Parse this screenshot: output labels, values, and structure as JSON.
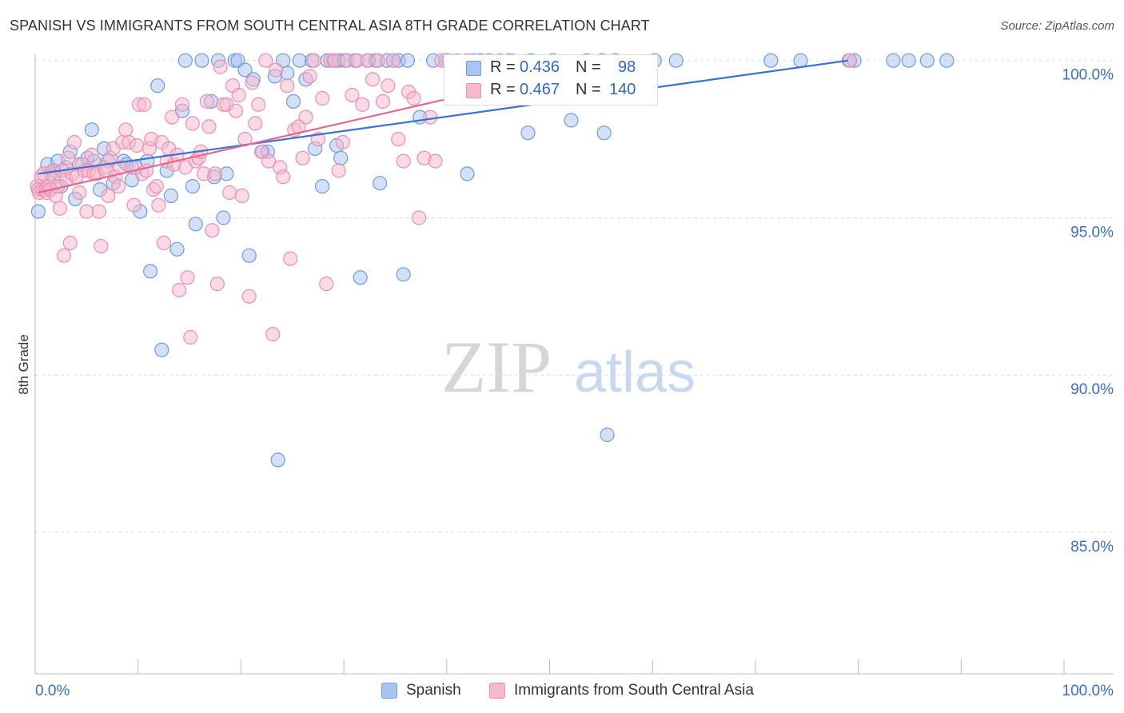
{
  "header": {
    "title": "SPANISH VS IMMIGRANTS FROM SOUTH CENTRAL ASIA 8TH GRADE CORRELATION CHART",
    "source": "Source: ZipAtlas.com"
  },
  "watermark": {
    "zip": "ZIP",
    "atlas": "atlas"
  },
  "legend": {
    "r_label": "R =",
    "n_label": "N =",
    "rows": [
      {
        "r": "0.436",
        "n": "98"
      },
      {
        "r": "0.467",
        "n": "140"
      }
    ]
  },
  "colors": {
    "spanish_fill": "#a8c4f0",
    "spanish_stroke": "#6f9ae0",
    "spanish_line": "#3a72d0",
    "immigrants_fill": "#f5b8cc",
    "immigrants_stroke": "#ec8fae",
    "immigrants_line": "#e2698f",
    "axis_label": "#3a6fc8",
    "grid": "#dddddd"
  },
  "chart_data": {
    "type": "scatter",
    "title": "SPANISH VS IMMIGRANTS FROM SOUTH CENTRAL ASIA 8TH GRADE CORRELATION CHART",
    "xlabel": "",
    "ylabel": "8th Grade",
    "xlim": [
      0,
      100
    ],
    "ylim": [
      80.5,
      100.4
    ],
    "x_tick_labels": [
      "0.0%",
      "100.0%"
    ],
    "y_ticks": [
      100,
      95,
      90,
      85
    ],
    "y_tick_labels": [
      "100.0%",
      "95.0%",
      "90.0%",
      "85.0%"
    ],
    "grid": true,
    "legend_position": "bottom",
    "series": [
      {
        "name": "Spanish",
        "r": 0.436,
        "n": 98,
        "trend": [
          [
            0.3,
            96.4
          ],
          [
            79,
            100.0
          ]
        ],
        "points": [
          [
            0.3,
            95.2
          ],
          [
            1.2,
            96.7
          ],
          [
            1.5,
            96.4
          ],
          [
            1.8,
            96.5
          ],
          [
            2.2,
            96.8
          ],
          [
            2.5,
            96.0
          ],
          [
            3.0,
            96.6
          ],
          [
            3.4,
            97.1
          ],
          [
            3.9,
            95.6
          ],
          [
            4.3,
            96.7
          ],
          [
            5.1,
            96.9
          ],
          [
            5.7,
            96.8
          ],
          [
            5.5,
            97.8
          ],
          [
            6.3,
            95.9
          ],
          [
            6.7,
            97.2
          ],
          [
            7.1,
            96.8
          ],
          [
            7.6,
            96.1
          ],
          [
            8.6,
            96.8
          ],
          [
            8.9,
            96.7
          ],
          [
            9.4,
            96.2
          ],
          [
            9.8,
            96.6
          ],
          [
            10.2,
            95.2
          ],
          [
            10.9,
            96.8
          ],
          [
            11.2,
            93.3
          ],
          [
            11.9,
            99.2
          ],
          [
            12.3,
            90.8
          ],
          [
            12.8,
            96.5
          ],
          [
            13.2,
            95.7
          ],
          [
            13.8,
            94.0
          ],
          [
            14.3,
            98.4
          ],
          [
            14.6,
            100.0
          ],
          [
            15.3,
            96.0
          ],
          [
            15.6,
            94.8
          ],
          [
            16.2,
            100.0
          ],
          [
            17.1,
            98.7
          ],
          [
            17.4,
            96.3
          ],
          [
            17.8,
            100.0
          ],
          [
            18.3,
            95.0
          ],
          [
            18.6,
            96.4
          ],
          [
            19.4,
            100.0
          ],
          [
            19.7,
            100.0
          ],
          [
            20.4,
            99.7
          ],
          [
            20.8,
            93.8
          ],
          [
            21.2,
            99.4
          ],
          [
            22.1,
            97.1
          ],
          [
            22.6,
            97.1
          ],
          [
            23.3,
            99.5
          ],
          [
            23.6,
            87.3
          ],
          [
            24.1,
            100.0
          ],
          [
            24.5,
            99.6
          ],
          [
            25.1,
            98.7
          ],
          [
            25.7,
            100.0
          ],
          [
            26.3,
            99.4
          ],
          [
            26.9,
            100.0
          ],
          [
            27.2,
            97.2
          ],
          [
            27.9,
            96.0
          ],
          [
            28.4,
            100.0
          ],
          [
            29.0,
            100.0
          ],
          [
            29.5,
            100.0
          ],
          [
            30.1,
            100.0
          ],
          [
            29.3,
            97.3
          ],
          [
            29.7,
            96.9
          ],
          [
            31.1,
            100.0
          ],
          [
            31.6,
            93.1
          ],
          [
            32.4,
            100.0
          ],
          [
            33.1,
            100.0
          ],
          [
            33.5,
            96.1
          ],
          [
            34.2,
            100.0
          ],
          [
            34.8,
            100.0
          ],
          [
            35.3,
            100.0
          ],
          [
            35.8,
            93.2
          ],
          [
            36.2,
            100.0
          ],
          [
            37.4,
            98.2
          ],
          [
            38.7,
            100.0
          ],
          [
            39.9,
            100.0
          ],
          [
            40.8,
            99.0
          ],
          [
            42.6,
            100.0
          ],
          [
            43.3,
            100.0
          ],
          [
            44.1,
            100.0
          ],
          [
            46.1,
            100.0
          ],
          [
            48.2,
            100.0
          ],
          [
            50.3,
            100.0
          ],
          [
            53.6,
            100.0
          ],
          [
            55.1,
            100.0
          ],
          [
            56.4,
            100.0
          ],
          [
            60.2,
            100.0
          ],
          [
            62.3,
            100.0
          ],
          [
            71.5,
            100.0
          ],
          [
            74.4,
            100.0
          ],
          [
            79.1,
            100.0
          ],
          [
            79.6,
            100.0
          ],
          [
            83.4,
            100.0
          ],
          [
            84.9,
            100.0
          ],
          [
            86.7,
            100.0
          ],
          [
            88.6,
            100.0
          ],
          [
            42.0,
            96.4
          ],
          [
            47.9,
            97.7
          ],
          [
            52.1,
            98.1
          ],
          [
            55.3,
            97.7
          ],
          [
            55.6,
            88.1
          ]
        ]
      },
      {
        "name": "Immigrants from South Central Asia",
        "r": 0.467,
        "n": 140,
        "trend": [
          [
            0.3,
            95.8
          ],
          [
            47,
            99.3
          ]
        ],
        "points": [
          [
            0.2,
            96.0
          ],
          [
            0.3,
            95.9
          ],
          [
            0.4,
            95.8
          ],
          [
            0.6,
            96.3
          ],
          [
            0.7,
            95.9
          ],
          [
            0.8,
            96.4
          ],
          [
            1.0,
            95.9
          ],
          [
            1.1,
            95.8
          ],
          [
            1.3,
            96.0
          ],
          [
            1.5,
            95.9
          ],
          [
            1.7,
            96.5
          ],
          [
            1.8,
            96.3
          ],
          [
            2.0,
            95.7
          ],
          [
            2.2,
            96.0
          ],
          [
            2.4,
            95.3
          ],
          [
            2.6,
            96.5
          ],
          [
            2.8,
            93.8
          ],
          [
            3.0,
            96.2
          ],
          [
            3.2,
            96.9
          ],
          [
            3.4,
            94.2
          ],
          [
            3.6,
            96.4
          ],
          [
            3.8,
            97.4
          ],
          [
            4.0,
            96.3
          ],
          [
            4.3,
            95.8
          ],
          [
            4.6,
            96.7
          ],
          [
            4.8,
            96.5
          ],
          [
            5.0,
            95.2
          ],
          [
            5.2,
            96.5
          ],
          [
            5.5,
            97.0
          ],
          [
            5.7,
            96.4
          ],
          [
            6.0,
            96.4
          ],
          [
            6.2,
            95.2
          ],
          [
            6.4,
            94.1
          ],
          [
            6.7,
            96.6
          ],
          [
            6.9,
            96.5
          ],
          [
            7.1,
            95.7
          ],
          [
            7.3,
            96.9
          ],
          [
            7.6,
            97.2
          ],
          [
            7.8,
            96.3
          ],
          [
            8.1,
            96.0
          ],
          [
            8.3,
            96.6
          ],
          [
            8.5,
            97.4
          ],
          [
            8.8,
            97.8
          ],
          [
            9.1,
            97.4
          ],
          [
            9.4,
            96.6
          ],
          [
            9.6,
            95.4
          ],
          [
            9.9,
            97.3
          ],
          [
            10.1,
            98.6
          ],
          [
            10.4,
            96.4
          ],
          [
            10.6,
            98.6
          ],
          [
            10.8,
            96.5
          ],
          [
            11.1,
            97.2
          ],
          [
            11.3,
            97.5
          ],
          [
            11.5,
            95.9
          ],
          [
            11.8,
            96.0
          ],
          [
            12.0,
            95.4
          ],
          [
            12.3,
            97.4
          ],
          [
            12.5,
            94.2
          ],
          [
            12.8,
            96.8
          ],
          [
            13.0,
            97.2
          ],
          [
            13.3,
            98.2
          ],
          [
            13.5,
            96.7
          ],
          [
            13.8,
            97.0
          ],
          [
            14.0,
            92.7
          ],
          [
            14.3,
            98.6
          ],
          [
            14.6,
            96.6
          ],
          [
            14.8,
            93.1
          ],
          [
            15.1,
            91.2
          ],
          [
            15.3,
            98.0
          ],
          [
            15.6,
            96.8
          ],
          [
            15.9,
            96.9
          ],
          [
            16.1,
            97.1
          ],
          [
            16.4,
            96.4
          ],
          [
            16.7,
            98.7
          ],
          [
            16.9,
            97.9
          ],
          [
            17.2,
            94.6
          ],
          [
            17.5,
            96.4
          ],
          [
            17.7,
            92.9
          ],
          [
            18.0,
            99.8
          ],
          [
            18.3,
            98.6
          ],
          [
            18.6,
            98.6
          ],
          [
            18.9,
            95.8
          ],
          [
            19.2,
            99.2
          ],
          [
            19.5,
            98.4
          ],
          [
            19.8,
            98.9
          ],
          [
            20.1,
            95.7
          ],
          [
            20.4,
            97.5
          ],
          [
            20.8,
            92.5
          ],
          [
            21.1,
            99.3
          ],
          [
            21.4,
            98.0
          ],
          [
            21.7,
            98.6
          ],
          [
            22.0,
            97.1
          ],
          [
            22.4,
            100.0
          ],
          [
            22.7,
            96.8
          ],
          [
            23.1,
            91.3
          ],
          [
            23.4,
            99.7
          ],
          [
            23.8,
            96.6
          ],
          [
            24.1,
            96.3
          ],
          [
            24.5,
            99.2
          ],
          [
            24.8,
            93.7
          ],
          [
            25.2,
            97.8
          ],
          [
            25.6,
            97.9
          ],
          [
            26.0,
            96.9
          ],
          [
            26.3,
            98.2
          ],
          [
            26.7,
            99.5
          ],
          [
            27.1,
            100.0
          ],
          [
            27.5,
            97.5
          ],
          [
            27.9,
            98.8
          ],
          [
            28.3,
            92.9
          ],
          [
            28.7,
            100.0
          ],
          [
            29.1,
            100.0
          ],
          [
            29.5,
            96.5
          ],
          [
            29.9,
            97.4
          ],
          [
            30.3,
            100.0
          ],
          [
            30.8,
            98.9
          ],
          [
            31.3,
            100.0
          ],
          [
            31.8,
            98.6
          ],
          [
            32.3,
            100.0
          ],
          [
            32.8,
            99.4
          ],
          [
            33.3,
            100.0
          ],
          [
            33.8,
            98.7
          ],
          [
            34.3,
            99.2
          ],
          [
            34.8,
            100.0
          ],
          [
            35.3,
            97.5
          ],
          [
            35.8,
            96.8
          ],
          [
            36.3,
            99.0
          ],
          [
            36.8,
            98.8
          ],
          [
            37.3,
            95.0
          ],
          [
            37.8,
            96.9
          ],
          [
            38.4,
            98.2
          ],
          [
            38.9,
            96.8
          ],
          [
            39.5,
            100.0
          ],
          [
            40.2,
            100.0
          ],
          [
            41.0,
            100.0
          ],
          [
            42.0,
            100.0
          ],
          [
            43.0,
            99.4
          ],
          [
            44.1,
            100.0
          ],
          [
            45.2,
            100.0
          ],
          [
            46.3,
            100.0
          ],
          [
            79.2,
            100.0
          ]
        ]
      }
    ]
  },
  "bottom_legend": [
    {
      "label": "Spanish"
    },
    {
      "label": "Immigrants from South Central Asia"
    }
  ]
}
